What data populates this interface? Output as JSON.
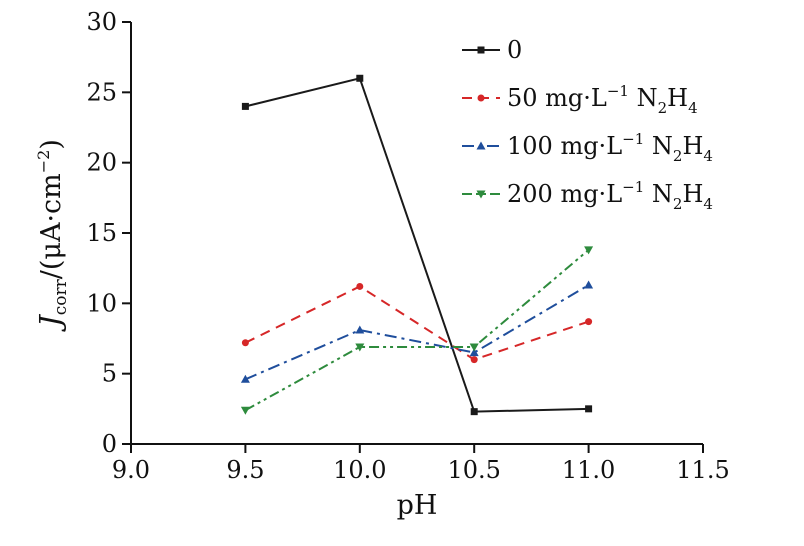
{
  "chart_data": {
    "type": "line",
    "xlabel": "pH",
    "ylabel": "J_corr/(μA·cm⁻²)",
    "ylabel_parts": {
      "symbol": "J",
      "subscript": "corr",
      "unit_open": "/(μA·cm",
      "unit_exp": "−2",
      "unit_close": ")"
    },
    "xlim": [
      9.0,
      11.5
    ],
    "ylim": [
      0,
      30
    ],
    "xticks": [
      9.0,
      9.5,
      10.0,
      10.5,
      11.0,
      11.5
    ],
    "xtick_labels": [
      "9.0",
      "9.5",
      "10.0",
      "10.5",
      "11.0",
      "11.5"
    ],
    "yticks": [
      0,
      5,
      10,
      15,
      20,
      25,
      30
    ],
    "ytick_labels": [
      "0",
      "5",
      "10",
      "15",
      "20",
      "25",
      "30"
    ],
    "grid": false,
    "legend_position": "top-right",
    "series": [
      {
        "name": "0",
        "label_parts": [
          {
            "t": "0"
          }
        ],
        "color": "#1a1a1a",
        "dash": "solid",
        "marker": "square",
        "x": [
          9.5,
          10.0,
          10.5,
          11.0
        ],
        "y": [
          24.0,
          26.0,
          2.3,
          2.5
        ]
      },
      {
        "name": "50 mg·L⁻¹ N₂H₄",
        "label_parts": [
          {
            "t": "50 mg·L"
          },
          {
            "t": "−1",
            "sup": true
          },
          {
            "t": " N"
          },
          {
            "t": "2",
            "sub": true
          },
          {
            "t": "H"
          },
          {
            "t": "4",
            "sub": true
          }
        ],
        "color": "#d62728",
        "dash": "dash",
        "marker": "circle",
        "x": [
          9.5,
          10.0,
          10.5,
          11.0
        ],
        "y": [
          7.2,
          11.2,
          6.0,
          8.7
        ]
      },
      {
        "name": "100 mg·L⁻¹ N₂H₄",
        "label_parts": [
          {
            "t": "100 mg·L"
          },
          {
            "t": "−1",
            "sup": true
          },
          {
            "t": " N"
          },
          {
            "t": "2",
            "sub": true
          },
          {
            "t": "H"
          },
          {
            "t": "4",
            "sub": true
          }
        ],
        "color": "#1f4e9c",
        "dash": "dashdot",
        "marker": "triangle-up",
        "x": [
          9.5,
          10.0,
          10.5,
          11.0
        ],
        "y": [
          4.6,
          8.1,
          6.5,
          11.3
        ]
      },
      {
        "name": "200 mg·L⁻¹ N₂H₄",
        "label_parts": [
          {
            "t": "200 mg·L"
          },
          {
            "t": "−1",
            "sup": true
          },
          {
            "t": " N"
          },
          {
            "t": "2",
            "sub": true
          },
          {
            "t": "H"
          },
          {
            "t": "4",
            "sub": true
          }
        ],
        "color": "#2e8b3d",
        "dash": "dashdotdot",
        "marker": "triangle-down",
        "x": [
          9.5,
          10.0,
          10.5,
          11.0
        ],
        "y": [
          2.4,
          6.9,
          6.9,
          13.8
        ]
      }
    ]
  }
}
